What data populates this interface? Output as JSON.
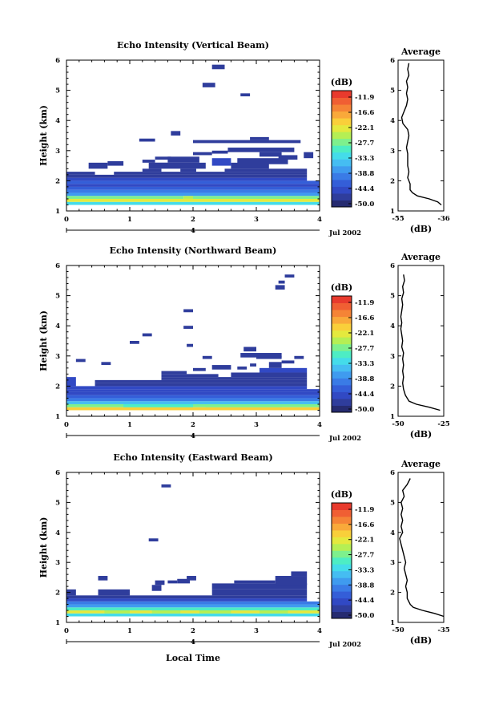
{
  "colorbar": {
    "unit": "(dB)",
    "ticks": [
      "-11.9",
      "-16.6",
      "-22.1",
      "-27.7",
      "-33.3",
      "-38.8",
      "-44.4",
      "-50.0"
    ],
    "colors": [
      "#262b70",
      "#2f3d9c",
      "#3149c4",
      "#345ed8",
      "#3a7be6",
      "#3f9bef",
      "#45bdf2",
      "#44dcea",
      "#4dedc4",
      "#7ef08d",
      "#b5ef54",
      "#e4e93e",
      "#f9cf3a",
      "#f9a93a",
      "#f58436",
      "#f05f33",
      "#e83a2d"
    ]
  },
  "date_label": "Jul 2002",
  "xaxis_label": "Local Time",
  "yaxis_label": "Height (km)",
  "avg_title": "Average",
  "avg_xlabel": "(dB)",
  "date_axis_tick": "4",
  "chart_data": [
    {
      "type": "heatmap",
      "title": "Echo Intensity (Vertical Beam)",
      "ylabel": "Height (km)",
      "xlim": [
        0,
        4
      ],
      "ylim": [
        1,
        6
      ],
      "xticks": [
        "0",
        "1",
        "2",
        "3",
        "4"
      ],
      "yticks": [
        "1",
        "2",
        "3",
        "4",
        "5",
        "6"
      ],
      "cells": [
        [
          0,
          4,
          1.2,
          1.3,
          7
        ],
        [
          0,
          4,
          1.3,
          1.4,
          11
        ],
        [
          0,
          1.85,
          1.4,
          1.5,
          9
        ],
        [
          1.85,
          2,
          1.4,
          1.5,
          10
        ],
        [
          2,
          4,
          1.4,
          1.5,
          9
        ],
        [
          0,
          4,
          1.5,
          1.6,
          5
        ],
        [
          0,
          4,
          1.6,
          1.7,
          4
        ],
        [
          0,
          4,
          1.7,
          1.8,
          3
        ],
        [
          0,
          4,
          1.8,
          1.9,
          2
        ],
        [
          0,
          4,
          1.9,
          2.0,
          3
        ],
        [
          0,
          3.8,
          2.0,
          2.1,
          2
        ],
        [
          0,
          3.8,
          2.1,
          2.2,
          1
        ],
        [
          0,
          0.45,
          2.2,
          2.3,
          1
        ],
        [
          0.75,
          3.8,
          2.2,
          2.3,
          1
        ],
        [
          1.2,
          1.5,
          2.3,
          2.4,
          1
        ],
        [
          1.8,
          2.05,
          2.3,
          2.4,
          1
        ],
        [
          2.5,
          3.8,
          2.3,
          2.4,
          1
        ],
        [
          0.35,
          0.65,
          2.4,
          2.6,
          1
        ],
        [
          1.3,
          2.2,
          2.4,
          2.6,
          1
        ],
        [
          2.6,
          3.2,
          2.4,
          2.6,
          1
        ],
        [
          1.35,
          1.6,
          2.5,
          2.6,
          1
        ],
        [
          2.7,
          3.5,
          2.55,
          2.75,
          1
        ],
        [
          1.2,
          1.4,
          2.6,
          2.7,
          1
        ],
        [
          1.4,
          1.65,
          2.7,
          2.8,
          1
        ],
        [
          1.6,
          2.1,
          2.6,
          2.8,
          1
        ],
        [
          2.3,
          2.6,
          2.5,
          2.75,
          2
        ],
        [
          2.0,
          2.3,
          2.85,
          2.95,
          1
        ],
        [
          2.3,
          2.55,
          2.9,
          3.0,
          1
        ],
        [
          2.55,
          3.6,
          2.95,
          3.1,
          1
        ],
        [
          3.35,
          3.65,
          2.7,
          2.85,
          1
        ],
        [
          3.75,
          3.9,
          2.75,
          2.95,
          1
        ],
        [
          3.05,
          3.4,
          2.8,
          2.95,
          1
        ],
        [
          1.15,
          1.4,
          3.3,
          3.4,
          1
        ],
        [
          1.65,
          1.8,
          3.5,
          3.65,
          1
        ],
        [
          2.0,
          3.7,
          3.25,
          3.35,
          1
        ],
        [
          2.9,
          3.2,
          3.35,
          3.45,
          1
        ],
        [
          2.15,
          2.35,
          5.1,
          5.25,
          1
        ],
        [
          2.3,
          2.5,
          5.7,
          5.85,
          1
        ],
        [
          2.75,
          2.9,
          4.8,
          4.9,
          1
        ],
        [
          0.65,
          0.9,
          2.5,
          2.65,
          1
        ]
      ],
      "average": {
        "xlim": [
          -55,
          -36
        ],
        "xticks": [
          "-55",
          "-36"
        ],
        "profile": [
          [
            -37,
            1.2
          ],
          [
            -38.5,
            1.3
          ],
          [
            -42,
            1.4
          ],
          [
            -47,
            1.5
          ],
          [
            -49,
            1.6
          ],
          [
            -50,
            1.7
          ],
          [
            -50,
            1.9
          ],
          [
            -51,
            2.1
          ],
          [
            -50.5,
            2.3
          ],
          [
            -51,
            2.5
          ],
          [
            -51,
            2.7
          ],
          [
            -51,
            2.9
          ],
          [
            -51.5,
            3.1
          ],
          [
            -51,
            3.3
          ],
          [
            -50.5,
            3.5
          ],
          [
            -51,
            3.7
          ],
          [
            -53,
            3.9
          ],
          [
            -53.5,
            4.1
          ],
          [
            -52.5,
            4.3
          ],
          [
            -51.5,
            4.5
          ],
          [
            -51,
            4.7
          ],
          [
            -51.5,
            4.9
          ],
          [
            -51,
            5.1
          ],
          [
            -51.5,
            5.3
          ],
          [
            -50.5,
            5.5
          ],
          [
            -51,
            5.7
          ],
          [
            -50.5,
            5.9
          ]
        ]
      }
    },
    {
      "type": "heatmap",
      "title": "Echo Intensity (Northward Beam)",
      "ylabel": "Height (km)",
      "xlim": [
        0,
        4
      ],
      "ylim": [
        1,
        6
      ],
      "xticks": [
        "0",
        "1",
        "2",
        "3",
        "4"
      ],
      "yticks": [
        "1",
        "2",
        "3",
        "4",
        "5",
        "6"
      ],
      "cells": [
        [
          0,
          4,
          1.2,
          1.3,
          12
        ],
        [
          0,
          4,
          1.3,
          1.4,
          9
        ],
        [
          0.9,
          2.0,
          1.3,
          1.4,
          8
        ],
        [
          2.2,
          3.4,
          1.3,
          1.4,
          9
        ],
        [
          0,
          4,
          1.4,
          1.5,
          6
        ],
        [
          0,
          4,
          1.5,
          1.6,
          4
        ],
        [
          0,
          4,
          1.6,
          1.7,
          3
        ],
        [
          0,
          4,
          1.7,
          1.8,
          2
        ],
        [
          0,
          4,
          1.8,
          1.9,
          2
        ],
        [
          0,
          3.8,
          1.9,
          2.0,
          2
        ],
        [
          0,
          0.15,
          2.0,
          2.3,
          2
        ],
        [
          0.45,
          3.8,
          2.0,
          2.1,
          1
        ],
        [
          0.45,
          3.8,
          2.1,
          2.2,
          1
        ],
        [
          1.5,
          3.8,
          2.2,
          2.3,
          1
        ],
        [
          1.5,
          2.4,
          2.3,
          2.4,
          1
        ],
        [
          2.6,
          3.8,
          2.3,
          2.45,
          1
        ],
        [
          3.05,
          3.8,
          2.45,
          2.6,
          2
        ],
        [
          1.5,
          1.9,
          2.4,
          2.5,
          1
        ],
        [
          2.0,
          2.2,
          2.5,
          2.6,
          1
        ],
        [
          2.3,
          2.6,
          2.55,
          2.7,
          1
        ],
        [
          2.7,
          2.85,
          2.55,
          2.65,
          1
        ],
        [
          2.9,
          3.0,
          2.65,
          2.75,
          1
        ],
        [
          3.2,
          3.4,
          2.6,
          2.8,
          1
        ],
        [
          3.4,
          3.6,
          2.75,
          2.85,
          1
        ],
        [
          3.6,
          3.75,
          2.9,
          3.0,
          1
        ],
        [
          3.0,
          3.4,
          2.9,
          3.0,
          1
        ],
        [
          2.75,
          3.4,
          2.95,
          3.1,
          1
        ],
        [
          2.8,
          3.0,
          3.15,
          3.3,
          1
        ],
        [
          0.15,
          0.3,
          2.8,
          2.9,
          1
        ],
        [
          0.55,
          0.7,
          2.7,
          2.8,
          1
        ],
        [
          1.9,
          2.0,
          3.3,
          3.4,
          1
        ],
        [
          2.15,
          2.3,
          2.9,
          3.0,
          1
        ],
        [
          1.0,
          1.15,
          3.4,
          3.5,
          1
        ],
        [
          1.2,
          1.35,
          3.65,
          3.75,
          1
        ],
        [
          1.85,
          2.0,
          3.9,
          4.0,
          1
        ],
        [
          1.85,
          2.0,
          4.45,
          4.55,
          1
        ],
        [
          3.35,
          3.45,
          5.4,
          5.5,
          1
        ],
        [
          3.3,
          3.45,
          5.2,
          5.35,
          1
        ],
        [
          3.45,
          3.6,
          5.6,
          5.7,
          1
        ]
      ],
      "average": {
        "xlim": [
          -50,
          -25
        ],
        "xticks": [
          "-50",
          "-25"
        ],
        "profile": [
          [
            -27,
            1.2
          ],
          [
            -33,
            1.3
          ],
          [
            -40,
            1.4
          ],
          [
            -44,
            1.5
          ],
          [
            -46,
            1.7
          ],
          [
            -47,
            1.9
          ],
          [
            -47.5,
            2.1
          ],
          [
            -47,
            2.3
          ],
          [
            -47.5,
            2.5
          ],
          [
            -47,
            2.7
          ],
          [
            -47.5,
            2.9
          ],
          [
            -47,
            3.1
          ],
          [
            -48,
            3.3
          ],
          [
            -47.5,
            3.5
          ],
          [
            -48,
            3.7
          ],
          [
            -48.5,
            3.9
          ],
          [
            -48,
            4.1
          ],
          [
            -48.5,
            4.3
          ],
          [
            -48,
            4.5
          ],
          [
            -47.5,
            4.7
          ],
          [
            -48,
            4.9
          ],
          [
            -47,
            5.1
          ],
          [
            -47.5,
            5.3
          ],
          [
            -46.5,
            5.5
          ],
          [
            -47,
            5.7
          ]
        ]
      }
    },
    {
      "type": "heatmap",
      "title": "Echo Intensity (Eastward Beam)",
      "ylabel": "Height (km)",
      "xlim": [
        0,
        4
      ],
      "ylim": [
        1,
        6
      ],
      "xticks": [
        "0",
        "1",
        "2",
        "3",
        "4"
      ],
      "yticks": [
        "1",
        "2",
        "3",
        "4",
        "5",
        "6"
      ],
      "cells": [
        [
          0,
          4,
          1.2,
          1.3,
          7
        ],
        [
          0,
          4,
          1.3,
          1.4,
          11
        ],
        [
          0.6,
          1.0,
          1.3,
          1.4,
          10
        ],
        [
          1.35,
          1.8,
          1.3,
          1.4,
          10
        ],
        [
          2.1,
          2.6,
          1.3,
          1.4,
          10
        ],
        [
          3.05,
          3.5,
          1.3,
          1.4,
          10
        ],
        [
          0,
          4,
          1.4,
          1.5,
          8
        ],
        [
          0,
          4,
          1.5,
          1.6,
          5
        ],
        [
          0,
          4,
          1.6,
          1.7,
          4
        ],
        [
          0,
          3.8,
          1.7,
          1.8,
          2
        ],
        [
          0,
          3.8,
          1.8,
          1.9,
          1
        ],
        [
          0,
          0.15,
          1.9,
          2.1,
          1
        ],
        [
          0.5,
          1.0,
          1.9,
          2.1,
          1
        ],
        [
          2.3,
          3.8,
          1.9,
          2.1,
          1
        ],
        [
          2.3,
          3.8,
          2.1,
          2.3,
          1
        ],
        [
          2.65,
          3.3,
          2.3,
          2.4,
          1
        ],
        [
          3.3,
          3.8,
          2.25,
          2.55,
          1
        ],
        [
          3.55,
          3.8,
          2.55,
          2.7,
          1
        ],
        [
          1.4,
          1.55,
          2.25,
          2.4,
          1
        ],
        [
          1.6,
          1.75,
          2.3,
          2.4,
          1
        ],
        [
          1.75,
          1.95,
          2.3,
          2.45,
          1
        ],
        [
          1.9,
          2.05,
          2.4,
          2.55,
          1
        ],
        [
          0.5,
          0.65,
          2.4,
          2.55,
          1
        ],
        [
          1.35,
          1.5,
          2.05,
          2.25,
          1
        ],
        [
          1.3,
          1.45,
          3.7,
          3.8,
          1
        ],
        [
          1.5,
          1.65,
          5.5,
          5.6,
          1
        ]
      ],
      "average": {
        "xlim": [
          -50,
          -35
        ],
        "xticks": [
          "-50",
          "-35"
        ],
        "profile": [
          [
            -35,
            1.2
          ],
          [
            -38,
            1.3
          ],
          [
            -42,
            1.4
          ],
          [
            -45,
            1.5
          ],
          [
            -46,
            1.6
          ],
          [
            -47,
            1.8
          ],
          [
            -47,
            2.0
          ],
          [
            -47.5,
            2.2
          ],
          [
            -47,
            2.4
          ],
          [
            -47.5,
            2.6
          ],
          [
            -48,
            2.8
          ],
          [
            -47.5,
            3.0
          ],
          [
            -48,
            3.2
          ],
          [
            -48.5,
            3.4
          ],
          [
            -49,
            3.6
          ],
          [
            -49.5,
            3.8
          ],
          [
            -48.5,
            4.0
          ],
          [
            -49,
            4.2
          ],
          [
            -48.5,
            4.4
          ],
          [
            -49,
            4.6
          ],
          [
            -48.5,
            4.8
          ],
          [
            -49,
            5.0
          ],
          [
            -48,
            5.2
          ],
          [
            -48.5,
            5.4
          ],
          [
            -47,
            5.6
          ],
          [
            -46,
            5.8
          ]
        ]
      }
    }
  ]
}
